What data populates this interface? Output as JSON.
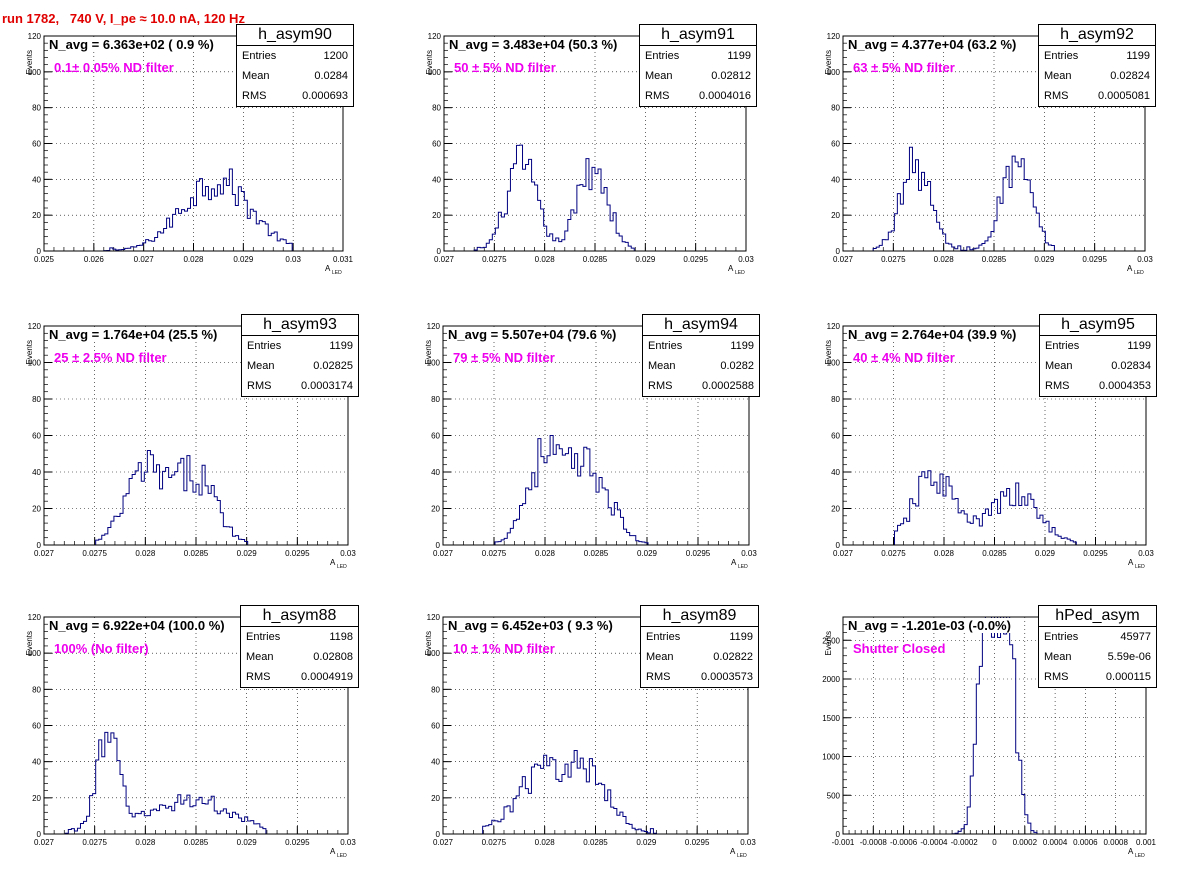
{
  "run_title": "run 1782,   740 V, I_pe ≈ 10.0 nA, 120 Hz",
  "stats_labels": {
    "entries": "Entries",
    "mean": "Mean",
    "rms": "RMS"
  },
  "chart_data": [
    {
      "type": "histogram",
      "name": "h_asym90",
      "navg": "N_avg = 6.363e+02 ( 0.9 %)",
      "filter": "0.1± 0.05% ND filter",
      "entries": "1200",
      "mean": "0.0284",
      "rms": "0.000693",
      "xlabel": "A",
      "xlabel_sub": "LED",
      "ylabel": "Events",
      "xlim": [
        0.025,
        0.031
      ],
      "ylim": [
        0,
        120
      ],
      "xticks": [
        "0.025",
        "0.026",
        "0.027",
        "0.028",
        "0.029",
        "0.03",
        "0.031"
      ],
      "yticks": [
        "0",
        "20",
        "40",
        "60",
        "80",
        "100",
        "120"
      ],
      "peaks": [
        {
          "mu": 0.02845,
          "sigma": 0.00068,
          "amp": 40
        }
      ],
      "range": [
        0.0262,
        0.03
      ]
    },
    {
      "type": "histogram",
      "name": "h_asym91",
      "navg": "N_avg = 3.483e+04 (50.3 %)",
      "filter": "50 ± 5% ND filter",
      "entries": "1199",
      "mean": "0.02812",
      "rms": "0.0004016",
      "xlabel": "A",
      "xlabel_sub": "LED",
      "ylabel": "Events",
      "xlim": [
        0.027,
        0.03
      ],
      "ylim": [
        0,
        120
      ],
      "xticks": [
        "0.027",
        "0.0275",
        "0.028",
        "0.0285",
        "0.029",
        "0.0295",
        "0.03"
      ],
      "yticks": [
        "0",
        "20",
        "40",
        "60",
        "80",
        "100",
        "120"
      ],
      "peaks": [
        {
          "mu": 0.02777,
          "sigma": 0.00015,
          "amp": 48
        },
        {
          "mu": 0.02848,
          "sigma": 0.00015,
          "amp": 48
        }
      ],
      "range": [
        0.0273,
        0.0289
      ]
    },
    {
      "type": "histogram",
      "name": "h_asym92",
      "navg": "N_avg = 4.377e+04 (63.2 %)",
      "filter": "63 ± 5% ND filter",
      "entries": "1199",
      "mean": "0.02824",
      "rms": "0.0005081",
      "xlabel": "A",
      "xlabel_sub": "LED",
      "ylabel": "Events",
      "xlim": [
        0.027,
        0.03
      ],
      "ylim": [
        0,
        120
      ],
      "xticks": [
        "0.027",
        "0.0275",
        "0.028",
        "0.0285",
        "0.029",
        "0.0295",
        "0.03"
      ],
      "yticks": [
        "0",
        "20",
        "40",
        "60",
        "80",
        "100",
        "120"
      ],
      "peaks": [
        {
          "mu": 0.02772,
          "sigma": 0.00015,
          "amp": 48
        },
        {
          "mu": 0.02872,
          "sigma": 0.00015,
          "amp": 48
        }
      ],
      "range": [
        0.0273,
        0.0291
      ]
    },
    {
      "type": "histogram",
      "name": "h_asym93",
      "navg": "N_avg = 1.764e+04 (25.5 %)",
      "filter": "25 ± 2.5% ND filter",
      "entries": "1199",
      "mean": "0.02825",
      "rms": "0.0003174",
      "xlabel": "A",
      "xlabel_sub": "LED",
      "ylabel": "Events",
      "xlim": [
        0.027,
        0.03
      ],
      "ylim": [
        0,
        120
      ],
      "xticks": [
        "0.027",
        "0.0275",
        "0.028",
        "0.0285",
        "0.029",
        "0.0295",
        "0.03"
      ],
      "yticks": [
        "0",
        "20",
        "40",
        "60",
        "80",
        "100",
        "120"
      ],
      "peaks": [
        {
          "mu": 0.028,
          "sigma": 0.0002,
          "amp": 40
        },
        {
          "mu": 0.0285,
          "sigma": 0.0002,
          "amp": 38
        }
      ],
      "range": [
        0.0275,
        0.029
      ]
    },
    {
      "type": "histogram",
      "name": "h_asym94",
      "navg": "N_avg = 5.507e+04 (79.6 %)",
      "filter": "79 ± 5% ND filter",
      "entries": "1199",
      "mean": "0.0282",
      "rms": "0.0002588",
      "xlabel": "A",
      "xlabel_sub": "LED",
      "ylabel": "Events",
      "xlim": [
        0.027,
        0.03
      ],
      "ylim": [
        0,
        120
      ],
      "xticks": [
        "0.027",
        "0.0275",
        "0.028",
        "0.0285",
        "0.029",
        "0.0295",
        "0.03"
      ],
      "yticks": [
        "0",
        "20",
        "40",
        "60",
        "80",
        "100",
        "120"
      ],
      "peaks": [
        {
          "mu": 0.028,
          "sigma": 0.00018,
          "amp": 48
        },
        {
          "mu": 0.02845,
          "sigma": 0.0002,
          "amp": 40
        }
      ],
      "range": [
        0.0275,
        0.029
      ]
    },
    {
      "type": "histogram",
      "name": "h_asym95",
      "navg": "N_avg = 2.764e+04 (39.9 %)",
      "filter": "40 ± 4% ND filter",
      "entries": "1199",
      "mean": "0.02834",
      "rms": "0.0004353",
      "xlabel": "A",
      "xlabel_sub": "LED",
      "ylabel": "Events",
      "xlim": [
        0.027,
        0.03
      ],
      "ylim": [
        0,
        120
      ],
      "xticks": [
        "0.027",
        "0.0275",
        "0.028",
        "0.0285",
        "0.029",
        "0.0295",
        "0.03"
      ],
      "yticks": [
        "0",
        "20",
        "40",
        "60",
        "80",
        "100",
        "120"
      ],
      "peaks": [
        {
          "mu": 0.0279,
          "sigma": 0.0002,
          "amp": 38
        },
        {
          "mu": 0.0287,
          "sigma": 0.00025,
          "amp": 27
        }
      ],
      "range": [
        0.0275,
        0.0293
      ]
    },
    {
      "type": "histogram",
      "name": "h_asym88",
      "navg": "N_avg = 6.922e+04 (100.0 %)",
      "filter": "100% (No filter)",
      "entries": "1198",
      "mean": "0.02808",
      "rms": "0.0004919",
      "xlabel": "A",
      "xlabel_sub": "LED",
      "ylabel": "Events",
      "xlim": [
        0.027,
        0.03
      ],
      "ylim": [
        0,
        120
      ],
      "xticks": [
        "0.027",
        "0.0275",
        "0.028",
        "0.0285",
        "0.029",
        "0.0295",
        "0.03"
      ],
      "yticks": [
        "0",
        "20",
        "40",
        "60",
        "80",
        "100",
        "120"
      ],
      "peaks": [
        {
          "mu": 0.02763,
          "sigma": 0.00012,
          "amp": 48
        },
        {
          "mu": 0.02845,
          "sigma": 0.0004,
          "amp": 19
        }
      ],
      "range": [
        0.0272,
        0.0292
      ]
    },
    {
      "type": "histogram",
      "name": "h_asym89",
      "navg": "N_avg = 6.452e+03 ( 9.3 %)",
      "filter": "10 ± 1% ND filter",
      "entries": "1199",
      "mean": "0.02822",
      "rms": "0.0003573",
      "xlabel": "A",
      "xlabel_sub": "LED",
      "ylabel": "Events",
      "xlim": [
        0.027,
        0.03
      ],
      "ylim": [
        0,
        120
      ],
      "xticks": [
        "0.027",
        "0.0275",
        "0.028",
        "0.0285",
        "0.029",
        "0.0295",
        "0.03"
      ],
      "yticks": [
        "0",
        "20",
        "40",
        "60",
        "80",
        "100",
        "120"
      ],
      "peaks": [
        {
          "mu": 0.02805,
          "sigma": 0.0003,
          "amp": 36
        },
        {
          "mu": 0.0285,
          "sigma": 0.0002,
          "amp": 20
        }
      ],
      "range": [
        0.0274,
        0.0291
      ]
    },
    {
      "type": "histogram",
      "name": "hPed_asym",
      "navg": "N_avg = -1.201e-03 (-0.0%)",
      "filter": "Shutter Closed",
      "entries": "45977",
      "mean": "5.59e-06",
      "rms": "0.000115",
      "xlabel": "A",
      "xlabel_sub": "LED",
      "ylabel": "Events",
      "xlim": [
        -0.001,
        0.001
      ],
      "ylim": [
        0,
        2800
      ],
      "xticks": [
        "-0.001",
        "-0.0008",
        "-0.0006",
        "-0.0004",
        "-0.0002",
        "0",
        "0.0002",
        "0.0004",
        "0.0006",
        "0.0008",
        "0.001"
      ],
      "yticks": [
        "0",
        "500",
        "1000",
        "1500",
        "2000",
        "2500"
      ],
      "peaks": [
        {
          "mu": -5e-05,
          "sigma": 6e-05,
          "amp": 2500
        },
        {
          "mu": 8e-05,
          "sigma": 6e-05,
          "amp": 2600
        }
      ],
      "range": [
        -0.00028,
        0.00028
      ]
    }
  ]
}
